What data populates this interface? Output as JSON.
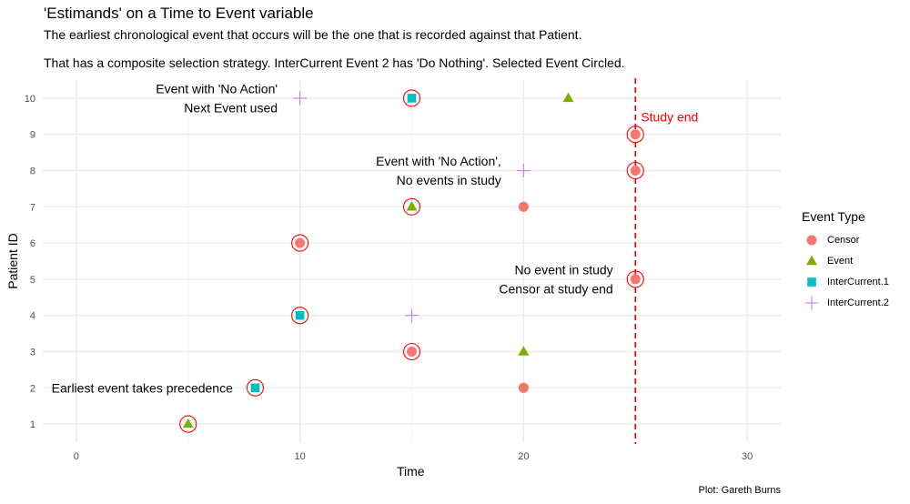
{
  "chart_data": {
    "type": "scatter",
    "title": "'Estimands' on a Time to Event variable",
    "subtitle": [
      "The earliest chronological event that occurs will be the one that is recorded against that Patient.",
      "That has a composite selection strategy. InterCurrent Event 2 has 'Do Nothing'. Selected Event Circled."
    ],
    "xlabel": "Time",
    "ylabel": "Patient ID",
    "caption": "Plot: Gareth Burns",
    "xlim": [
      -1.5,
      31.5
    ],
    "ylim": [
      0.5,
      10.5
    ],
    "x_ticks": [
      0,
      10,
      20,
      30
    ],
    "y_ticks": [
      1,
      2,
      3,
      4,
      5,
      6,
      7,
      8,
      9,
      10
    ],
    "grid": true,
    "legend": {
      "title": "Event Type",
      "position": "right",
      "entries": [
        "Censor",
        "Event",
        "InterCurrent.1",
        "InterCurrent.2"
      ]
    },
    "series": [
      {
        "name": "Censor",
        "color": "#F8766D",
        "shape": "circle",
        "points": [
          [
            20,
            2
          ],
          [
            15,
            3
          ],
          [
            25,
            5
          ],
          [
            10,
            6
          ],
          [
            20,
            7
          ],
          [
            25,
            8
          ],
          [
            25,
            9
          ]
        ]
      },
      {
        "name": "Event",
        "color": "#7CAE00",
        "shape": "triangle",
        "points": [
          [
            5,
            1
          ],
          [
            20,
            3
          ],
          [
            15,
            7
          ],
          [
            22,
            10
          ]
        ]
      },
      {
        "name": "InterCurrent.1",
        "color": "#00BFC4",
        "shape": "square",
        "points": [
          [
            8,
            2
          ],
          [
            10,
            4
          ],
          [
            15,
            10
          ]
        ]
      },
      {
        "name": "InterCurrent.2",
        "color": "#C77CFF",
        "shape": "plus",
        "points": [
          [
            15,
            4
          ],
          [
            20,
            8
          ],
          [
            10,
            10
          ]
        ]
      }
    ],
    "selected_points": [
      [
        5,
        1
      ],
      [
        8,
        2
      ],
      [
        15,
        3
      ],
      [
        10,
        4
      ],
      [
        25,
        5
      ],
      [
        10,
        6
      ],
      [
        15,
        7
      ],
      [
        25,
        8
      ],
      [
        25,
        9
      ],
      [
        15,
        10
      ]
    ],
    "selection_color": "#FF0000",
    "reference_line": {
      "x": 25,
      "label": "Study end",
      "color": "#FF0000",
      "style": "dashed"
    },
    "annotations": [
      {
        "lines": [
          "Event with 'No Action'",
          "Next Event used"
        ],
        "x": 9,
        "y": 10
      },
      {
        "lines": [
          "Event with 'No Action',",
          "No events in study"
        ],
        "x": 19,
        "y": 8
      },
      {
        "lines": [
          "No event in study",
          "Censor at study end"
        ],
        "x": 24,
        "y": 5
      },
      {
        "lines": [
          "Earliest event takes precedence"
        ],
        "x": 7,
        "y": 2
      }
    ]
  }
}
